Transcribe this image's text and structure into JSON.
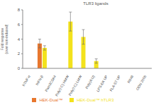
{
  "chart_data": {
    "type": "bar",
    "title": "TLR3 ligands",
    "y_label": "Fold response (over non-induced)",
    "categories": [
      "hTNF-α",
      "hIFN-β",
      "Pam3CSK4",
      "Poly(I:C) HMW",
      "Poly(I:C) LMW",
      "Poly(A:U)",
      "LPS-EK UP",
      "FLA-ST UP",
      "R848",
      "ODN 2006"
    ],
    "series": [
      {
        "name": "HEK-Dual™",
        "color": "#e8772e",
        "values": [
          0,
          3.4,
          0,
          0,
          0,
          0,
          0,
          0,
          0,
          0
        ],
        "errors": [
          0,
          0.6,
          0,
          0,
          0,
          0,
          0,
          0,
          0,
          0
        ]
      },
      {
        "name": "HEK-Dual™ hTLR3",
        "color": "#f3e21c",
        "values": [
          0,
          2.8,
          0,
          6.4,
          4.3,
          1.0,
          0,
          0,
          0,
          0
        ],
        "errors": [
          0,
          0.3,
          0,
          1.3,
          1.0,
          0.3,
          0,
          0,
          0,
          0
        ]
      }
    ],
    "ylim": [
      0,
      8
    ],
    "yticks": [
      0,
      2,
      4,
      6,
      8
    ],
    "grid": false,
    "legend": "bottom"
  }
}
